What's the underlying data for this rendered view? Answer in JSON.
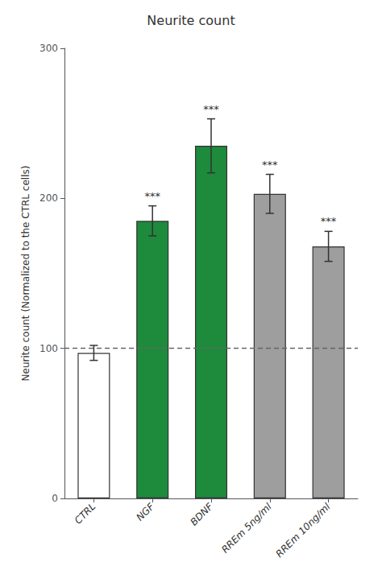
{
  "chart_data": {
    "type": "bar",
    "title": "Neurite count",
    "ylabel": "Neurite count (Normalized to the CTRL cells)",
    "categories": [
      "CTRL",
      "NGF",
      "BDNF",
      "RREm 5ng/ml",
      "RREm 10ng/ml"
    ],
    "values": [
      97,
      185,
      235,
      203,
      168
    ],
    "errors": [
      5,
      10,
      18,
      13,
      10
    ],
    "colors": [
      "#ffffff",
      "#1e8a3c",
      "#1e8a3c",
      "#9e9e9e",
      "#9e9e9e"
    ],
    "significance": [
      null,
      "***",
      "***",
      "***",
      "***"
    ],
    "reference_line_y": 100,
    "ylim": [
      0,
      300
    ],
    "yticks": [
      0,
      100,
      200,
      300
    ],
    "grid": false
  }
}
